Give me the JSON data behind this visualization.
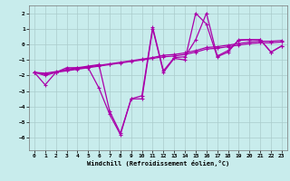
{
  "xlabel": "Windchill (Refroidissement éolien,°C)",
  "background_color": "#c8ecec",
  "line_color": "#aa00aa",
  "grid_color": "#aacccc",
  "xlim": [
    -0.5,
    23.5
  ],
  "ylim": [
    -6.8,
    2.5
  ],
  "yticks": [
    -6,
    -5,
    -4,
    -3,
    -2,
    -1,
    0,
    1,
    2
  ],
  "xticks": [
    0,
    1,
    2,
    3,
    4,
    5,
    6,
    7,
    8,
    9,
    10,
    11,
    12,
    13,
    14,
    15,
    16,
    17,
    18,
    19,
    20,
    21,
    22,
    23
  ],
  "series_trend1_x": [
    0,
    1,
    2,
    3,
    4,
    5,
    6,
    7,
    8,
    9,
    10,
    11,
    12,
    13,
    14,
    15,
    16,
    17,
    18,
    19,
    20,
    21,
    22,
    23
  ],
  "series_trend1_y": [
    -1.8,
    -1.9,
    -1.8,
    -1.7,
    -1.6,
    -1.5,
    -1.4,
    -1.3,
    -1.2,
    -1.1,
    -1.0,
    -0.9,
    -0.8,
    -0.75,
    -0.65,
    -0.5,
    -0.3,
    -0.25,
    -0.15,
    -0.05,
    0.05,
    0.1,
    0.1,
    0.15
  ],
  "series_trend2_x": [
    0,
    1,
    2,
    3,
    4,
    5,
    6,
    7,
    8,
    9,
    10,
    11,
    12,
    13,
    14,
    15,
    16,
    17,
    18,
    19,
    20,
    21,
    22,
    23
  ],
  "series_trend2_y": [
    -1.8,
    -1.85,
    -1.75,
    -1.65,
    -1.55,
    -1.45,
    -1.35,
    -1.25,
    -1.15,
    -1.05,
    -0.95,
    -0.85,
    -0.7,
    -0.65,
    -0.55,
    -0.4,
    -0.2,
    -0.15,
    -0.05,
    0.05,
    0.15,
    0.2,
    0.2,
    0.25
  ],
  "series_wiggly1_x": [
    0,
    1,
    2,
    3,
    4,
    5,
    6,
    7,
    8,
    9,
    10,
    11,
    12,
    13,
    14,
    15,
    16,
    17,
    18,
    19,
    20,
    21,
    22,
    23
  ],
  "series_wiggly1_y": [
    -1.8,
    -2.6,
    -1.8,
    -1.5,
    -1.5,
    -1.5,
    -2.8,
    -4.5,
    -5.8,
    -3.5,
    -3.5,
    1.0,
    -1.8,
    -0.9,
    -1.0,
    2.0,
    1.3,
    -0.8,
    -0.5,
    0.3,
    0.3,
    0.3,
    -0.5,
    -0.1
  ],
  "series_wiggly2_x": [
    0,
    1,
    2,
    3,
    4,
    5,
    6,
    7,
    8,
    9,
    10,
    11,
    12,
    13,
    14,
    15,
    16,
    17,
    18,
    19,
    20,
    21,
    22,
    23
  ],
  "series_wiggly2_y": [
    -1.8,
    -2.0,
    -1.8,
    -1.6,
    -1.5,
    -1.4,
    -1.3,
    -4.3,
    -5.7,
    -3.5,
    -3.3,
    1.1,
    -1.7,
    -0.85,
    -0.8,
    0.3,
    2.0,
    -0.75,
    -0.4,
    0.25,
    0.3,
    0.3,
    -0.5,
    -0.1
  ]
}
